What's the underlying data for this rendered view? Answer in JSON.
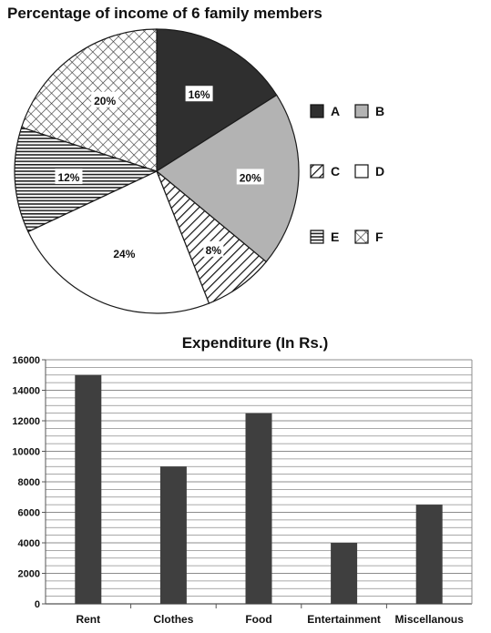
{
  "chart_data": [
    {
      "type": "pie",
      "title": "Percentage of income of 6 family members",
      "categories": [
        "A",
        "B",
        "C",
        "D",
        "E",
        "F"
      ],
      "values": [
        16,
        20,
        8,
        24,
        12,
        20
      ],
      "slice_labels": [
        "16%",
        "20%",
        "8%",
        "24%",
        "12%",
        "20%"
      ],
      "fills": [
        "solid-dark",
        "solid-gray",
        "diagonal-hatch",
        "blank",
        "horizontal-lines",
        "crosshatch"
      ],
      "colors": {
        "dark": "#2f2f2f",
        "gray": "#b3b3b3",
        "outline": "#1a1a1a"
      },
      "legend_position": "right"
    },
    {
      "type": "bar",
      "title": "Expenditure (In Rs.)",
      "categories": [
        "Rent",
        "Clothes",
        "Food",
        "Entertainment",
        "Miscellanous"
      ],
      "values": [
        15000,
        9000,
        12500,
        4000,
        6500
      ],
      "ylim": [
        0,
        16000
      ],
      "yticks": [
        "0",
        "2000",
        "4000",
        "6000",
        "8000",
        "10000",
        "12000",
        "14000",
        "16000"
      ],
      "grid": true,
      "colors": {
        "bar": "#3f3f3f",
        "grid": "#8c8c8c"
      }
    }
  ]
}
